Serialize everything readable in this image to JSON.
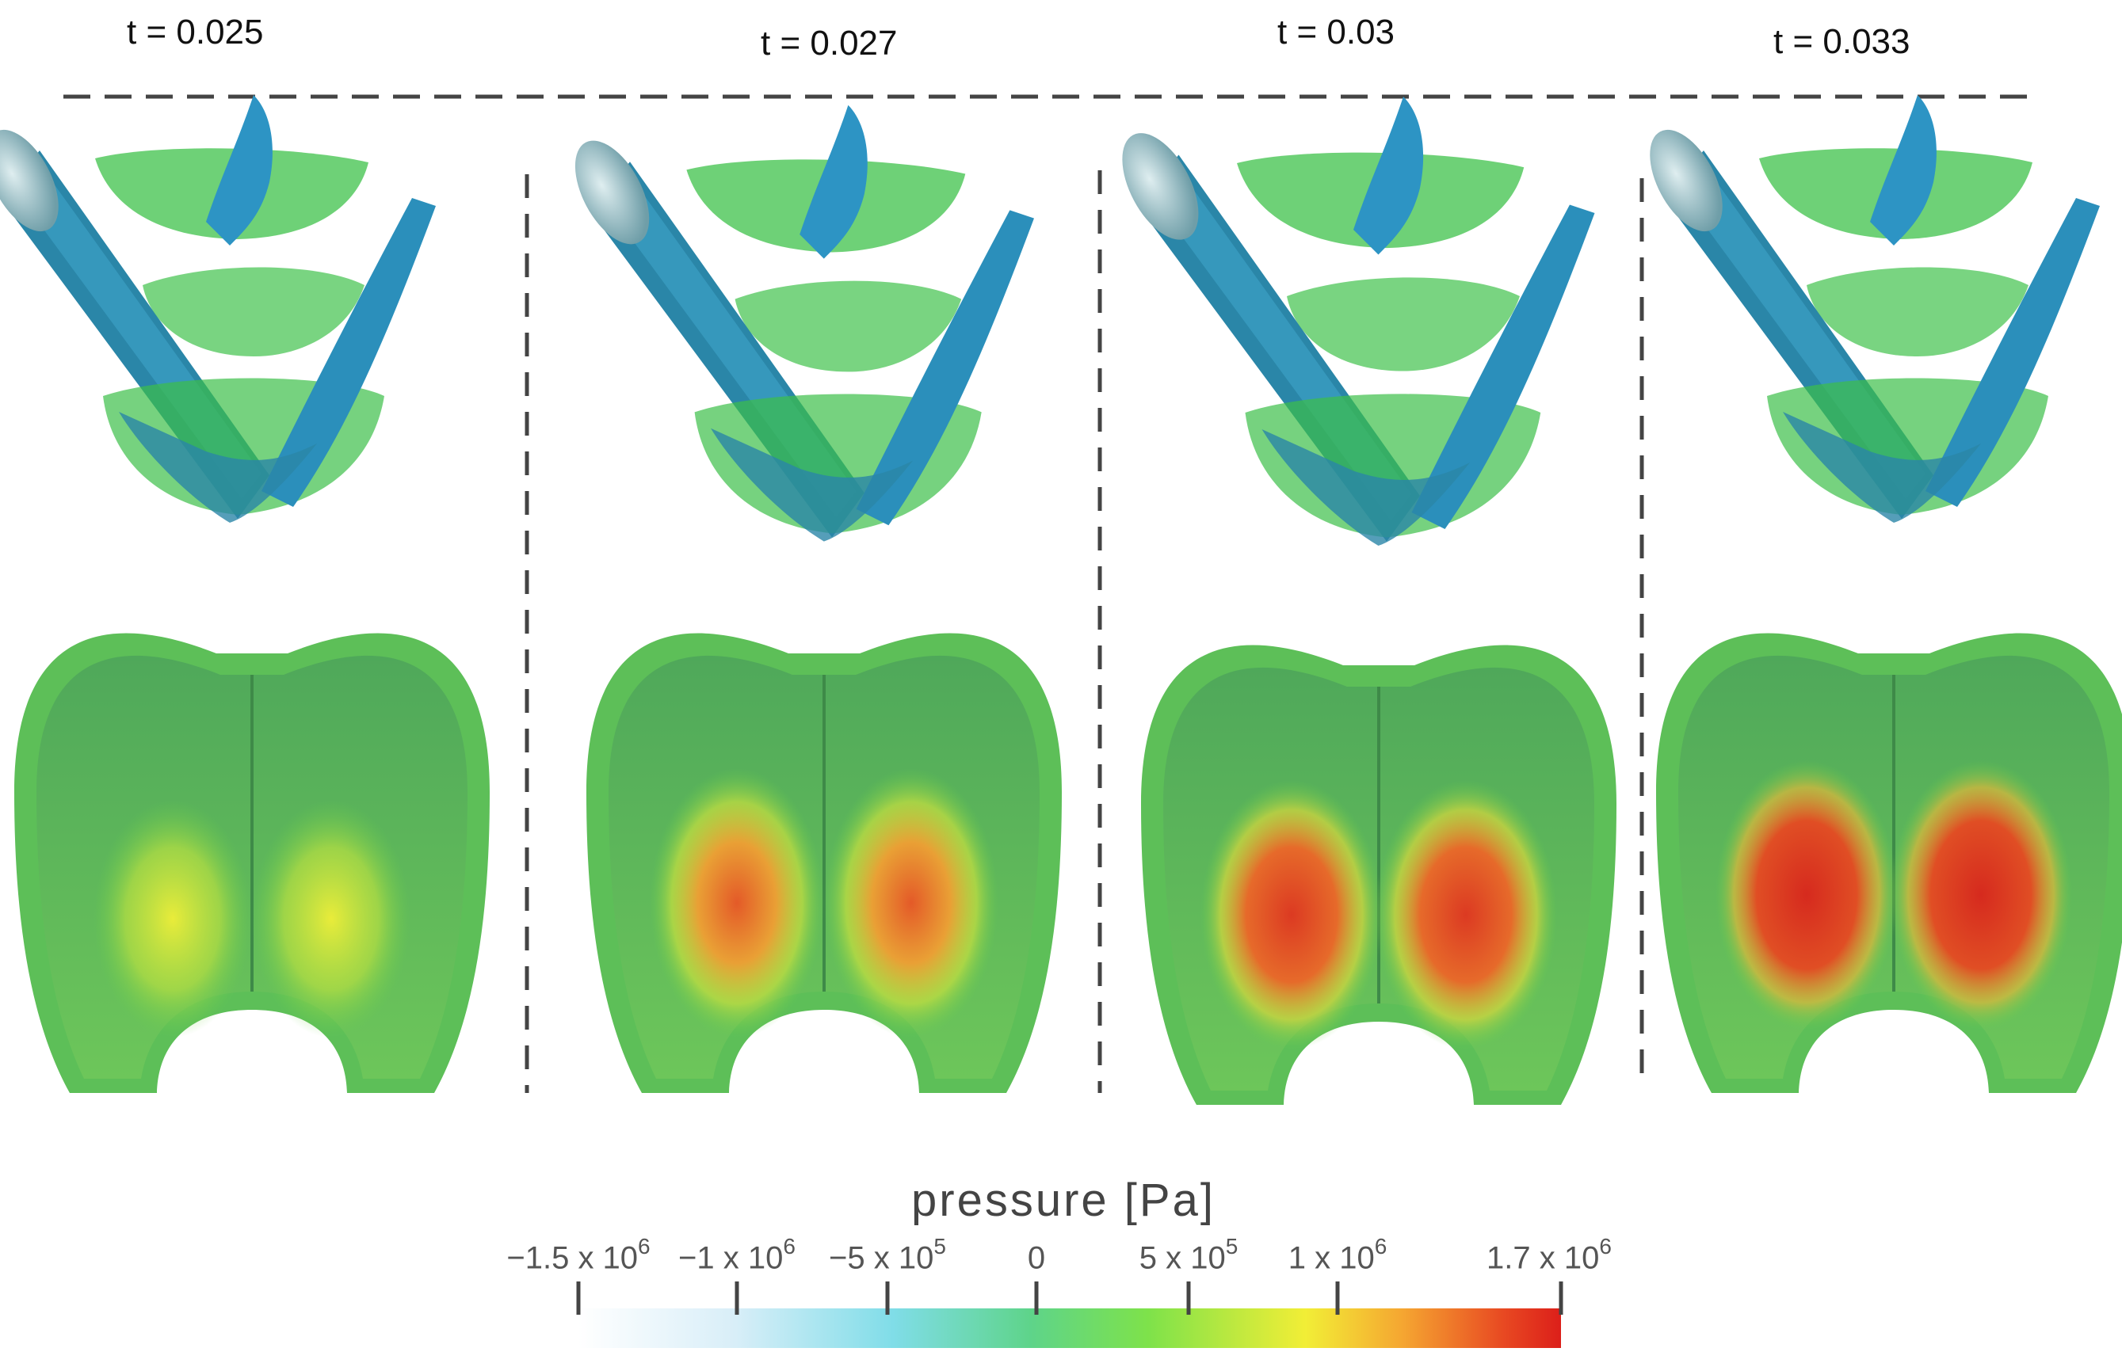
{
  "frames": [
    {
      "time_label": "t = 0.025"
    },
    {
      "time_label": "t = 0.027"
    },
    {
      "time_label": "t = 0.03"
    },
    {
      "time_label": "t = 0.033"
    }
  ],
  "colorbar": {
    "title": "pressure [Pa]",
    "ticks": [
      {
        "mantissa": "−1.5 x 10",
        "exp": "6"
      },
      {
        "mantissa": "−1 x 10",
        "exp": "6"
      },
      {
        "mantissa": "−5 x 10",
        "exp": "5"
      },
      {
        "mantissa": "0",
        "exp": ""
      },
      {
        "mantissa": "5 x 10",
        "exp": "5"
      },
      {
        "mantissa": "1 x 10",
        "exp": "6"
      },
      {
        "mantissa": "1.7 x 10",
        "exp": "6"
      }
    ],
    "colors": [
      "#ffffff",
      "#c8e6f5",
      "#7fdbe6",
      "#5cd27a",
      "#7ee24a",
      "#f2ee36",
      "#f5a531",
      "#e84a22",
      "#dc1f1a"
    ]
  }
}
